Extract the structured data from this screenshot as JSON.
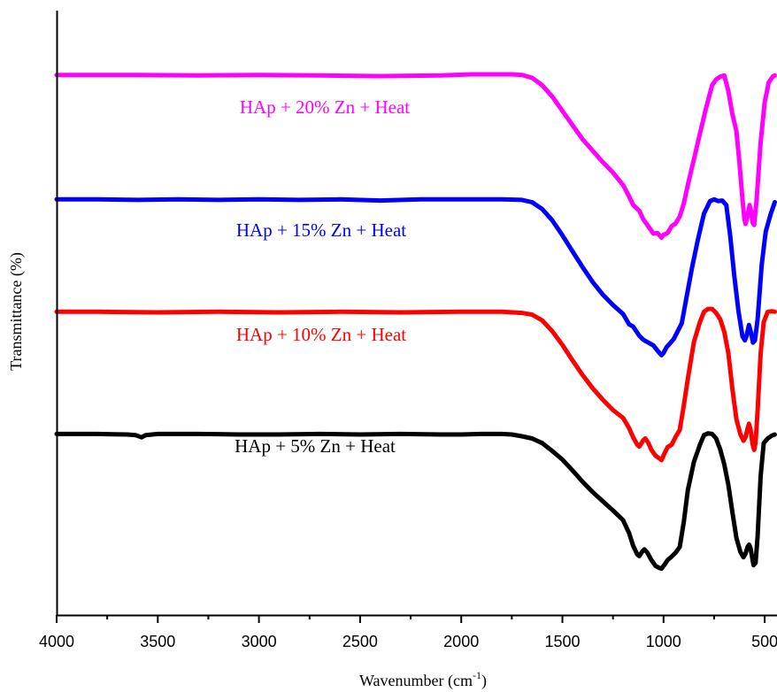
{
  "chart_data": {
    "type": "line",
    "xlabel": "Wavenumber (cm",
    "xlabel_superscript": "-1",
    "xlabel_suffix": ")",
    "ylabel": "Transmittance (%)",
    "xlim": [
      4000,
      450
    ],
    "x_reversed": true,
    "x_ticks": [
      4000,
      3500,
      3000,
      2500,
      2000,
      1500,
      1000,
      500
    ],
    "x_tick_labels": [
      "4000",
      "3500",
      "3000",
      "2500",
      "2000",
      "1500",
      "1000",
      "500"
    ],
    "ylim": [
      0,
      100
    ],
    "y_ticks": false,
    "grid": false,
    "legend": "none",
    "series": [
      {
        "name": "HAp + 20% Zn + Heat",
        "color": "#ff00ff",
        "points": [
          [
            4000,
            92.3
          ],
          [
            3600,
            92.3
          ],
          [
            3300,
            92.2
          ],
          [
            3000,
            92.3
          ],
          [
            2700,
            92.2
          ],
          [
            2400,
            92.1
          ],
          [
            2100,
            92.2
          ],
          [
            1950,
            92.4
          ],
          [
            1750,
            92.4
          ],
          [
            1700,
            92.3
          ],
          [
            1650,
            91.8
          ],
          [
            1600,
            90.5
          ],
          [
            1550,
            88.5
          ],
          [
            1500,
            86.0
          ],
          [
            1450,
            83.5
          ],
          [
            1400,
            81.0
          ],
          [
            1350,
            79.0
          ],
          [
            1300,
            77.0
          ],
          [
            1250,
            75.2
          ],
          [
            1200,
            73.0
          ],
          [
            1170,
            71.0
          ],
          [
            1150,
            69.5
          ],
          [
            1120,
            68.5
          ],
          [
            1100,
            67.0
          ],
          [
            1070,
            65.5
          ],
          [
            1050,
            64.5
          ],
          [
            1030,
            64.6
          ],
          [
            1010,
            63.8
          ],
          [
            1000,
            64.3
          ],
          [
            980,
            64.6
          ],
          [
            960,
            65.8
          ],
          [
            940,
            66.3
          ],
          [
            920,
            67.5
          ],
          [
            900,
            69.8
          ],
          [
            880,
            73.0
          ],
          [
            850,
            77.5
          ],
          [
            820,
            82.0
          ],
          [
            790,
            86.5
          ],
          [
            760,
            90.5
          ],
          [
            740,
            91.5
          ],
          [
            720,
            92.0
          ],
          [
            700,
            92.2
          ],
          [
            680,
            89.5
          ],
          [
            660,
            85.5
          ],
          [
            640,
            82.5
          ],
          [
            625,
            77.0
          ],
          [
            610,
            70.5
          ],
          [
            600,
            67.0
          ],
          [
            595,
            66.2
          ],
          [
            585,
            67.5
          ],
          [
            575,
            69.5
          ],
          [
            568,
            68.5
          ],
          [
            560,
            66.4
          ],
          [
            552,
            66.0
          ],
          [
            540,
            70.5
          ],
          [
            520,
            80.5
          ],
          [
            500,
            87.5
          ],
          [
            480,
            91.0
          ],
          [
            460,
            92.0
          ],
          [
            450,
            92.2
          ]
        ]
      },
      {
        "name": "HAp + 15% Zn + Heat",
        "color": "#0000ff",
        "points": [
          [
            4000,
            70.5
          ],
          [
            3800,
            70.5
          ],
          [
            3600,
            70.4
          ],
          [
            3400,
            70.5
          ],
          [
            3200,
            70.4
          ],
          [
            3000,
            70.5
          ],
          [
            2800,
            70.4
          ],
          [
            2600,
            70.5
          ],
          [
            2400,
            70.3
          ],
          [
            2200,
            70.5
          ],
          [
            2000,
            70.5
          ],
          [
            1800,
            70.5
          ],
          [
            1700,
            70.4
          ],
          [
            1650,
            70.0
          ],
          [
            1600,
            68.8
          ],
          [
            1550,
            66.8
          ],
          [
            1500,
            64.2
          ],
          [
            1450,
            61.4
          ],
          [
            1400,
            58.6
          ],
          [
            1350,
            56.0
          ],
          [
            1300,
            53.8
          ],
          [
            1250,
            52.0
          ],
          [
            1200,
            50.4
          ],
          [
            1170,
            48.6
          ],
          [
            1150,
            48.2
          ],
          [
            1120,
            46.6
          ],
          [
            1100,
            45.9
          ],
          [
            1070,
            45.3
          ],
          [
            1050,
            44.9
          ],
          [
            1030,
            44.0
          ],
          [
            1010,
            43.2
          ],
          [
            1000,
            43.6
          ],
          [
            985,
            44.6
          ],
          [
            970,
            45.2
          ],
          [
            950,
            46.0
          ],
          [
            930,
            47.4
          ],
          [
            910,
            48.8
          ],
          [
            890,
            52.6
          ],
          [
            860,
            58.4
          ],
          [
            830,
            63.5
          ],
          [
            800,
            68.0
          ],
          [
            770,
            70.2
          ],
          [
            750,
            70.5
          ],
          [
            730,
            70.2
          ],
          [
            710,
            70.3
          ],
          [
            690,
            69.5
          ],
          [
            670,
            64.0
          ],
          [
            650,
            57.0
          ],
          [
            630,
            51.0
          ],
          [
            610,
            46.5
          ],
          [
            598,
            45.8
          ],
          [
            590,
            46.5
          ],
          [
            578,
            48.5
          ],
          [
            568,
            47.2
          ],
          [
            558,
            45.4
          ],
          [
            548,
            45.8
          ],
          [
            535,
            49.5
          ],
          [
            515,
            59.0
          ],
          [
            495,
            64.8
          ],
          [
            470,
            68.0
          ],
          [
            450,
            70.0
          ]
        ]
      },
      {
        "name": "HAp + 10% Zn + Heat",
        "color": "#ff0000",
        "points": [
          [
            4000,
            50.8
          ],
          [
            3800,
            50.8
          ],
          [
            3500,
            50.7
          ],
          [
            3200,
            50.8
          ],
          [
            2900,
            50.7
          ],
          [
            2600,
            50.8
          ],
          [
            2300,
            50.7
          ],
          [
            2000,
            50.8
          ],
          [
            1800,
            50.8
          ],
          [
            1700,
            50.6
          ],
          [
            1650,
            50.3
          ],
          [
            1600,
            49.3
          ],
          [
            1550,
            47.4
          ],
          [
            1500,
            45.0
          ],
          [
            1450,
            42.3
          ],
          [
            1400,
            39.7
          ],
          [
            1350,
            37.4
          ],
          [
            1300,
            35.4
          ],
          [
            1250,
            33.6
          ],
          [
            1200,
            32.2
          ],
          [
            1170,
            30.4
          ],
          [
            1150,
            28.8
          ],
          [
            1130,
            27.5
          ],
          [
            1120,
            27.2
          ],
          [
            1100,
            28.3
          ],
          [
            1090,
            28.6
          ],
          [
            1075,
            27.8
          ],
          [
            1060,
            26.6
          ],
          [
            1040,
            25.6
          ],
          [
            1020,
            25.1
          ],
          [
            1010,
            24.8
          ],
          [
            995,
            26.0
          ],
          [
            980,
            27.1
          ],
          [
            960,
            27.5
          ],
          [
            940,
            28.9
          ],
          [
            920,
            30.1
          ],
          [
            900,
            34.4
          ],
          [
            880,
            39.0
          ],
          [
            850,
            45.5
          ],
          [
            820,
            49.0
          ],
          [
            800,
            50.8
          ],
          [
            780,
            51.3
          ],
          [
            760,
            51.3
          ],
          [
            740,
            50.6
          ],
          [
            720,
            49.5
          ],
          [
            700,
            47.3
          ],
          [
            680,
            43.6
          ],
          [
            660,
            37.4
          ],
          [
            640,
            32.0
          ],
          [
            620,
            29.3
          ],
          [
            605,
            28.2
          ],
          [
            595,
            28.8
          ],
          [
            585,
            30.3
          ],
          [
            578,
            31.2
          ],
          [
            570,
            30.2
          ],
          [
            560,
            27.6
          ],
          [
            552,
            26.6
          ],
          [
            545,
            27.9
          ],
          [
            535,
            33.5
          ],
          [
            520,
            43.5
          ],
          [
            505,
            49.0
          ],
          [
            485,
            50.8
          ],
          [
            465,
            50.9
          ],
          [
            450,
            50.8
          ]
        ]
      },
      {
        "name": "HAp + 5% Zn + Heat",
        "color": "#000000",
        "points": [
          [
            4000,
            29.4
          ],
          [
            3800,
            29.4
          ],
          [
            3650,
            29.3
          ],
          [
            3610,
            29.2
          ],
          [
            3580,
            28.8
          ],
          [
            3560,
            29.2
          ],
          [
            3500,
            29.4
          ],
          [
            3300,
            29.4
          ],
          [
            3100,
            29.3
          ],
          [
            2900,
            29.3
          ],
          [
            2700,
            29.4
          ],
          [
            2500,
            29.3
          ],
          [
            2300,
            29.4
          ],
          [
            2100,
            29.3
          ],
          [
            2000,
            29.3
          ],
          [
            1900,
            29.4
          ],
          [
            1800,
            29.4
          ],
          [
            1750,
            29.3
          ],
          [
            1700,
            29.0
          ],
          [
            1650,
            28.6
          ],
          [
            1600,
            27.8
          ],
          [
            1550,
            26.4
          ],
          [
            1500,
            24.9
          ],
          [
            1450,
            23.0
          ],
          [
            1400,
            21.0
          ],
          [
            1350,
            19.2
          ],
          [
            1300,
            17.6
          ],
          [
            1250,
            16.0
          ],
          [
            1200,
            14.3
          ],
          [
            1170,
            12.0
          ],
          [
            1150,
            9.8
          ],
          [
            1130,
            8.3
          ],
          [
            1120,
            8.0
          ],
          [
            1105,
            8.8
          ],
          [
            1095,
            9.2
          ],
          [
            1080,
            8.6
          ],
          [
            1060,
            7.3
          ],
          [
            1040,
            6.3
          ],
          [
            1020,
            5.9
          ],
          [
            1010,
            5.8
          ],
          [
            995,
            6.5
          ],
          [
            980,
            7.3
          ],
          [
            960,
            7.9
          ],
          [
            940,
            8.6
          ],
          [
            920,
            9.6
          ],
          [
            900,
            14.0
          ],
          [
            880,
            19.5
          ],
          [
            850,
            24.5
          ],
          [
            820,
            27.5
          ],
          [
            800,
            29.2
          ],
          [
            780,
            29.5
          ],
          [
            760,
            29.4
          ],
          [
            740,
            28.6
          ],
          [
            720,
            26.7
          ],
          [
            700,
            24.1
          ],
          [
            680,
            20.5
          ],
          [
            660,
            15.8
          ],
          [
            640,
            11.2
          ],
          [
            620,
            8.7
          ],
          [
            605,
            7.8
          ],
          [
            595,
            8.4
          ],
          [
            585,
            9.6
          ],
          [
            577,
            10.0
          ],
          [
            570,
            9.4
          ],
          [
            562,
            7.8
          ],
          [
            555,
            6.4
          ],
          [
            545,
            6.8
          ],
          [
            535,
            11.5
          ],
          [
            520,
            22.0
          ],
          [
            505,
            27.8
          ],
          [
            485,
            28.6
          ],
          [
            465,
            29.1
          ],
          [
            450,
            29.3
          ]
        ]
      }
    ]
  }
}
